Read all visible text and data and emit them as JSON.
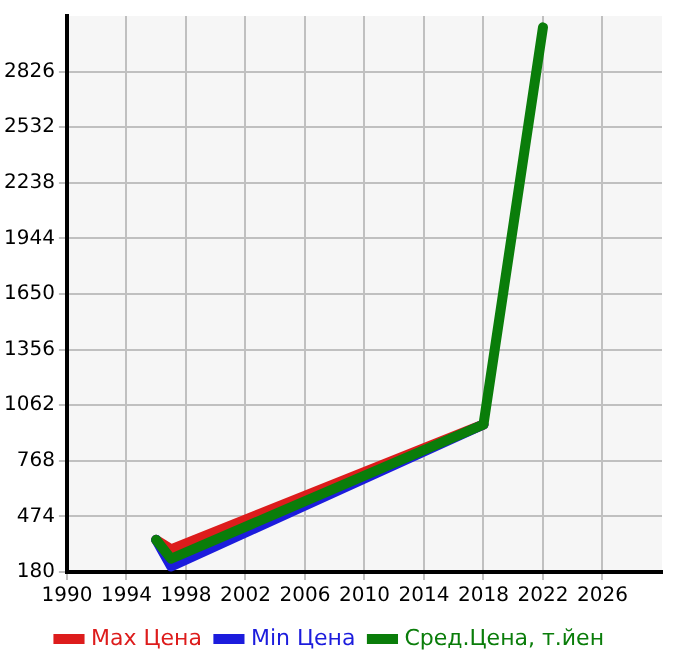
{
  "chart_data": {
    "type": "line",
    "x": [
      1996,
      1997,
      2018
    ],
    "series": [
      {
        "name": "Max Цена",
        "color": "#dd1c1c",
        "values": [
          350,
          300,
          960
        ]
      },
      {
        "name": "Min Цена",
        "color": "#1c1cdd",
        "values": [
          350,
          210,
          960
        ]
      },
      {
        "name": "Сред.Цена, т.йен",
        "color": "#0a7d0a",
        "x": [
          1996,
          1997,
          2018,
          2022
        ],
        "values": [
          350,
          250,
          960,
          3060
        ]
      }
    ],
    "xlim": [
      1990,
      2030
    ],
    "xticks": [
      1990,
      1994,
      1998,
      2002,
      2006,
      2010,
      2014,
      2018,
      2022,
      2026
    ],
    "ylim": [
      180,
      3120
    ],
    "yticks": [
      180,
      474,
      768,
      1062,
      1356,
      1650,
      1944,
      2238,
      2532,
      2826
    ],
    "grid": true,
    "legend": "bottom",
    "marker": "none",
    "line_style": "solid"
  }
}
